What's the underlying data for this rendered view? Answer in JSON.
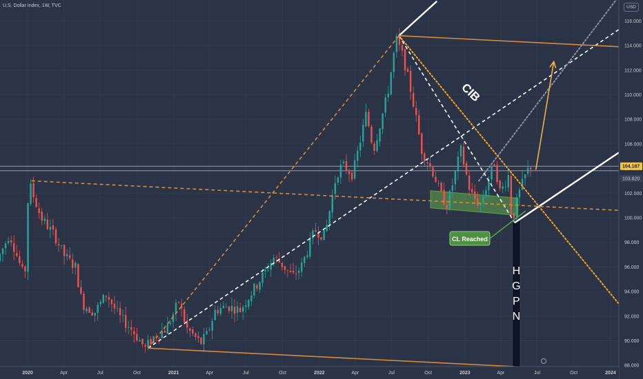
{
  "header": {
    "symbol_line": "U.S. Dollar Index, 1W, TVC"
  },
  "currency_button": "USD",
  "chart_data": {
    "type": "candlestick",
    "title": "U.S. Dollar Index, 1W, TVC",
    "x_ticks": [
      "2020",
      "Apr",
      "Jul",
      "Oct",
      "2021",
      "Apr",
      "Jul",
      "Oct",
      "2022",
      "Apr",
      "Jul",
      "Oct",
      "2023",
      "Apr",
      "Jul",
      "Oct",
      "2024"
    ],
    "x_start": "2020-01-01",
    "x_end": "2024-03-31",
    "y_ticks": [
      "116.000",
      "114.000",
      "112.000",
      "110.000",
      "108.000",
      "106.000",
      "104.000",
      "102.000",
      "100.000",
      "98.000",
      "96.000",
      "94.000",
      "92.000",
      "90.000",
      "88.000"
    ],
    "ylim": [
      87.9,
      117.7
    ],
    "price_labels": {
      "last": "104.187",
      "prev": "103.820",
      "last_value": 104.187,
      "prev_value": 103.82
    },
    "price_path": [
      [
        "2020-01-01",
        96.5
      ],
      [
        "2020-02-01",
        98.7
      ],
      [
        "2020-03-10",
        95.0
      ],
      [
        "2020-03-20",
        102.9
      ],
      [
        "2020-04-20",
        100.0
      ],
      [
        "2020-05-25",
        98.5
      ],
      [
        "2020-06-15",
        97.0
      ],
      [
        "2020-07-15",
        96.0
      ],
      [
        "2020-08-01",
        93.0
      ],
      [
        "2020-09-01",
        92.3
      ],
      [
        "2020-10-01",
        93.8
      ],
      [
        "2020-11-01",
        92.0
      ],
      [
        "2020-12-01",
        91.0
      ],
      [
        "2021-01-06",
        89.4
      ],
      [
        "2021-02-01",
        90.5
      ],
      [
        "2021-03-01",
        91.0
      ],
      [
        "2021-03-31",
        93.2
      ],
      [
        "2021-04-20",
        91.0
      ],
      [
        "2021-05-25",
        89.8
      ],
      [
        "2021-06-10",
        90.5
      ],
      [
        "2021-07-01",
        92.5
      ],
      [
        "2021-08-01",
        92.8
      ],
      [
        "2021-09-01",
        92.5
      ],
      [
        "2021-10-01",
        94.0
      ],
      [
        "2021-11-01",
        95.5
      ],
      [
        "2021-11-25",
        96.8
      ],
      [
        "2021-12-15",
        96.2
      ],
      [
        "2022-01-10",
        95.2
      ],
      [
        "2022-02-01",
        96.0
      ],
      [
        "2022-03-07",
        99.0
      ],
      [
        "2022-04-01",
        98.5
      ],
      [
        "2022-04-30",
        103.5
      ],
      [
        "2022-05-15",
        104.3
      ],
      [
        "2022-06-10",
        103.5
      ],
      [
        "2022-07-14",
        108.5
      ],
      [
        "2022-08-01",
        105.5
      ],
      [
        "2022-09-05",
        110.0
      ],
      [
        "2022-09-27",
        114.5
      ],
      [
        "2022-10-15",
        113.0
      ],
      [
        "2022-11-05",
        110.0
      ],
      [
        "2022-11-30",
        105.5
      ],
      [
        "2022-12-31",
        103.5
      ],
      [
        "2023-01-15",
        102.0
      ],
      [
        "2023-02-02",
        101.0
      ],
      [
        "2023-03-08",
        105.5
      ],
      [
        "2023-04-01",
        102.0
      ],
      [
        "2023-04-25",
        101.0
      ],
      [
        "2023-05-31",
        104.5
      ],
      [
        "2023-06-15",
        102.0
      ],
      [
        "2023-07-06",
        103.5
      ],
      [
        "2023-07-14",
        99.6
      ],
      [
        "2023-07-30",
        101.8
      ],
      [
        "2023-08-15",
        103.3
      ],
      [
        "2023-08-28",
        104.2
      ]
    ],
    "drawings": {
      "labels": {
        "cib": "CIB",
        "cl_reached": "CL Reached",
        "hgpn": [
          "H",
          "G",
          "P",
          "N"
        ]
      },
      "lines": [
        {
          "name": "upper-channel-line-white",
          "color": "#ffffff",
          "style": "solid",
          "from": [
            "2022-09-27",
            114.8
          ],
          "to": [
            "2022-12-31",
            117.6
          ]
        },
        {
          "name": "lower-channel-line-white",
          "color": "#ffffff",
          "style": "solid",
          "from": [
            "2023-07-14",
            99.6
          ],
          "to": [
            "2024-03-31",
            105.3
          ]
        },
        {
          "name": "mid-channel-line-dashed-white",
          "color": "#ffffff",
          "style": "dashed",
          "from": [
            "2021-01-06",
            89.4
          ],
          "to": [
            "2024-03-31",
            115.3
          ]
        },
        {
          "name": "upper-dotted-gray-line",
          "color": "#8c93a6",
          "style": "dotted",
          "from": [
            "2023-04-15",
            103.0
          ],
          "to": [
            "2024-03-31",
            118.0
          ]
        },
        {
          "name": "descending-dashed-white-line",
          "color": "#ffffff",
          "style": "dashed",
          "from": [
            "2022-09-27",
            114.8
          ],
          "to": [
            "2023-07-14",
            99.6
          ]
        },
        {
          "name": "cib-dotted-orange-line",
          "color": "#f5a623",
          "style": "dotted",
          "from": [
            "2022-09-27",
            114.8
          ],
          "to": [
            "2024-03-31",
            93.0
          ]
        },
        {
          "name": "top-orange-line",
          "color": "#d98b3a",
          "style": "solid",
          "from": [
            "2022-09-27",
            114.8
          ],
          "to": [
            "2024-03-31",
            113.9
          ]
        },
        {
          "name": "bottom-orange-line",
          "color": "#d98b3a",
          "style": "solid",
          "from": [
            "2021-01-06",
            89.4
          ],
          "to": [
            "2023-07-14",
            87.9
          ]
        },
        {
          "name": "orange-dashed-support-line",
          "color": "#d98b3a",
          "style": "dashed",
          "from": [
            "2020-03-20",
            103.0
          ],
          "to": [
            "2024-03-31",
            100.6
          ]
        },
        {
          "name": "orange-dashed-diagonal-line",
          "color": "#d98b3a",
          "style": "dashed",
          "from": [
            "2021-01-06",
            89.4
          ],
          "to": [
            "2022-09-27",
            114.8
          ]
        },
        {
          "name": "price-level-line-1",
          "color": "#9aa0b0",
          "style": "solid",
          "from": [
            "2020-01-01",
            104.187
          ],
          "to": [
            "2024-03-31",
            104.187
          ]
        },
        {
          "name": "price-level-line-2",
          "color": "#9aa0b0",
          "style": "solid",
          "from": [
            "2020-01-01",
            103.82
          ],
          "to": [
            "2024-03-31",
            103.82
          ]
        }
      ],
      "target_arrow": {
        "color": "#f5b041",
        "from": [
          "2023-09-05",
          103.9
        ],
        "to": [
          "2023-10-20",
          112.7
        ]
      },
      "support_zone": {
        "color": "#5fa14a",
        "from": [
          "2022-12-15",
          101.3
        ],
        "to": [
          "2023-07-22",
          100.1
        ]
      },
      "hgpn_bar": {
        "color": "#0d1424",
        "from": [
          "2023-07-08",
          99.8
        ],
        "to": [
          "2023-07-28",
          87.9
        ]
      }
    },
    "candle_colors": {
      "up": "#26a69a",
      "down": "#ef5350"
    }
  }
}
